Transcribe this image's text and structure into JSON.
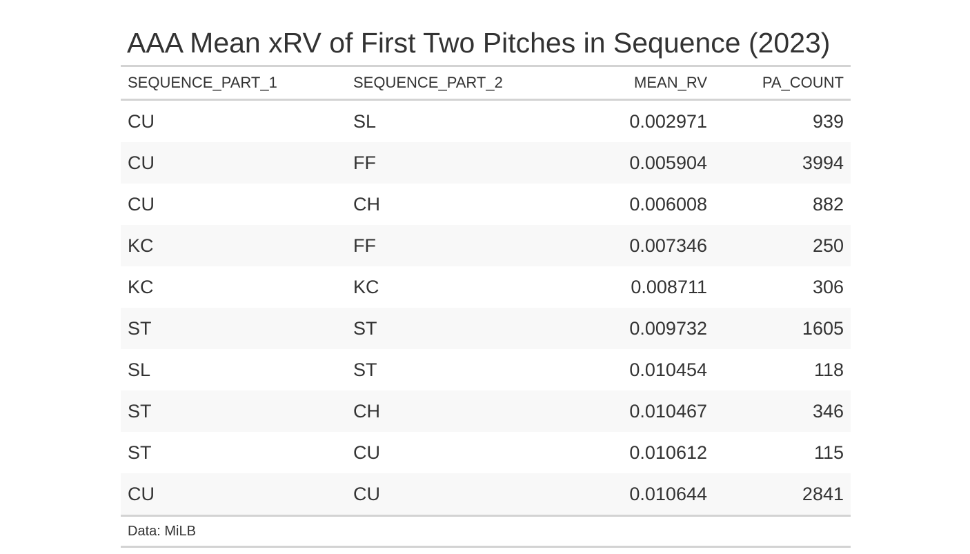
{
  "chart_data": {
    "type": "table",
    "title": "AAA Mean xRV of First Two Pitches in Sequence (2023)",
    "columns": [
      "SEQUENCE_PART_1",
      "SEQUENCE_PART_2",
      "MEAN_RV",
      "PA_COUNT"
    ],
    "rows": [
      [
        "CU",
        "SL",
        "0.002971",
        "939"
      ],
      [
        "CU",
        "FF",
        "0.005904",
        "3994"
      ],
      [
        "CU",
        "CH",
        "0.006008",
        "882"
      ],
      [
        "KC",
        "FF",
        "0.007346",
        "250"
      ],
      [
        "KC",
        "KC",
        "0.008711",
        "306"
      ],
      [
        "ST",
        "ST",
        "0.009732",
        "1605"
      ],
      [
        "SL",
        "ST",
        "0.010454",
        "118"
      ],
      [
        "ST",
        "CH",
        "0.010467",
        "346"
      ],
      [
        "ST",
        "CU",
        "0.010612",
        "115"
      ],
      [
        "CU",
        "CU",
        "0.010644",
        "2841"
      ]
    ],
    "source_note": "Data: MiLB"
  }
}
